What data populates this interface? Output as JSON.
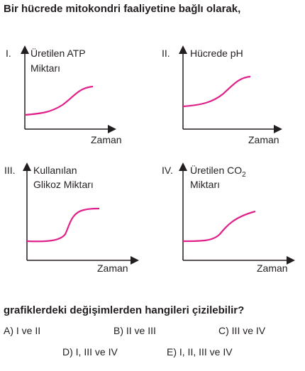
{
  "header": {
    "title": "Bir hücrede mitokondri faaliyetine bağlı olarak,"
  },
  "panels": [
    {
      "numeral": "I.",
      "y_label": [
        "Üretilen ATP",
        "Miktarı"
      ],
      "x_label": "Zaman"
    },
    {
      "numeral": "II.",
      "y_label": [
        "Hücrede pH"
      ],
      "x_label": "Zaman"
    },
    {
      "numeral": "III.",
      "y_label": [
        "Kullanılan",
        "Glikoz Miktarı"
      ],
      "x_label": "Zaman"
    },
    {
      "numeral": "IV.",
      "y_label": [
        "Üretilen CO",
        "Miktarı"
      ],
      "y_label_subscript": "2",
      "x_label": "Zaman"
    }
  ],
  "question": "grafiklerdeki değişimlerden hangileri çizilebilir?",
  "options": [
    "A) I ve II",
    "B) II ve III",
    "C) III ve IV",
    "D) I, III ve IV",
    "E) I, II, III ve IV"
  ]
}
